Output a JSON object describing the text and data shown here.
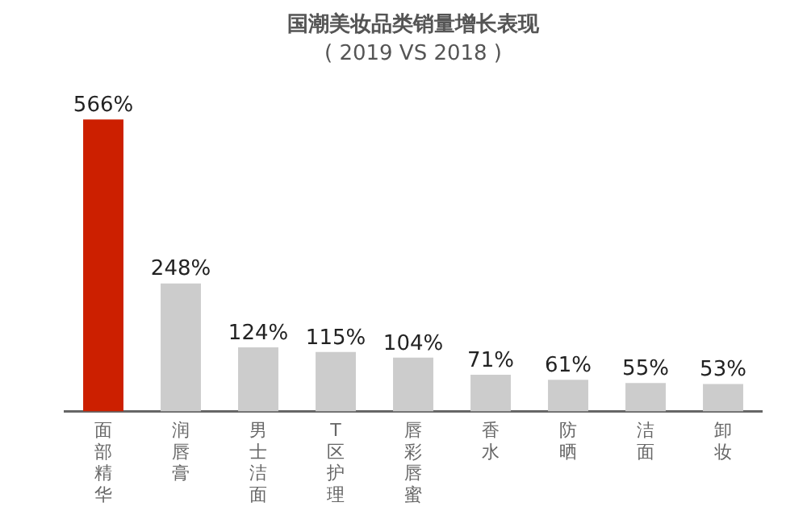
{
  "chart_data": {
    "type": "bar",
    "title": "国潮美妆品类销量增长表现",
    "subtitle": "( 2019 VS 2018 )",
    "categories": [
      "面部精华",
      "润唇膏",
      "男士洁面",
      "T区护理",
      "唇彩唇蜜",
      "香水",
      "防晒",
      "洁面",
      "卸妆"
    ],
    "values": [
      566,
      248,
      124,
      115,
      104,
      71,
      61,
      55,
      53
    ],
    "colors": [
      "#cc1f00",
      "#cccccc",
      "#cccccc",
      "#cccccc",
      "#cccccc",
      "#cccccc",
      "#cccccc",
      "#cccccc",
      "#cccccc"
    ],
    "value_labels": [
      "566%",
      "248%",
      "124%",
      "115%",
      "104%",
      "71%",
      "61%",
      "55%",
      "53%"
    ],
    "grid": false,
    "legend": false
  }
}
